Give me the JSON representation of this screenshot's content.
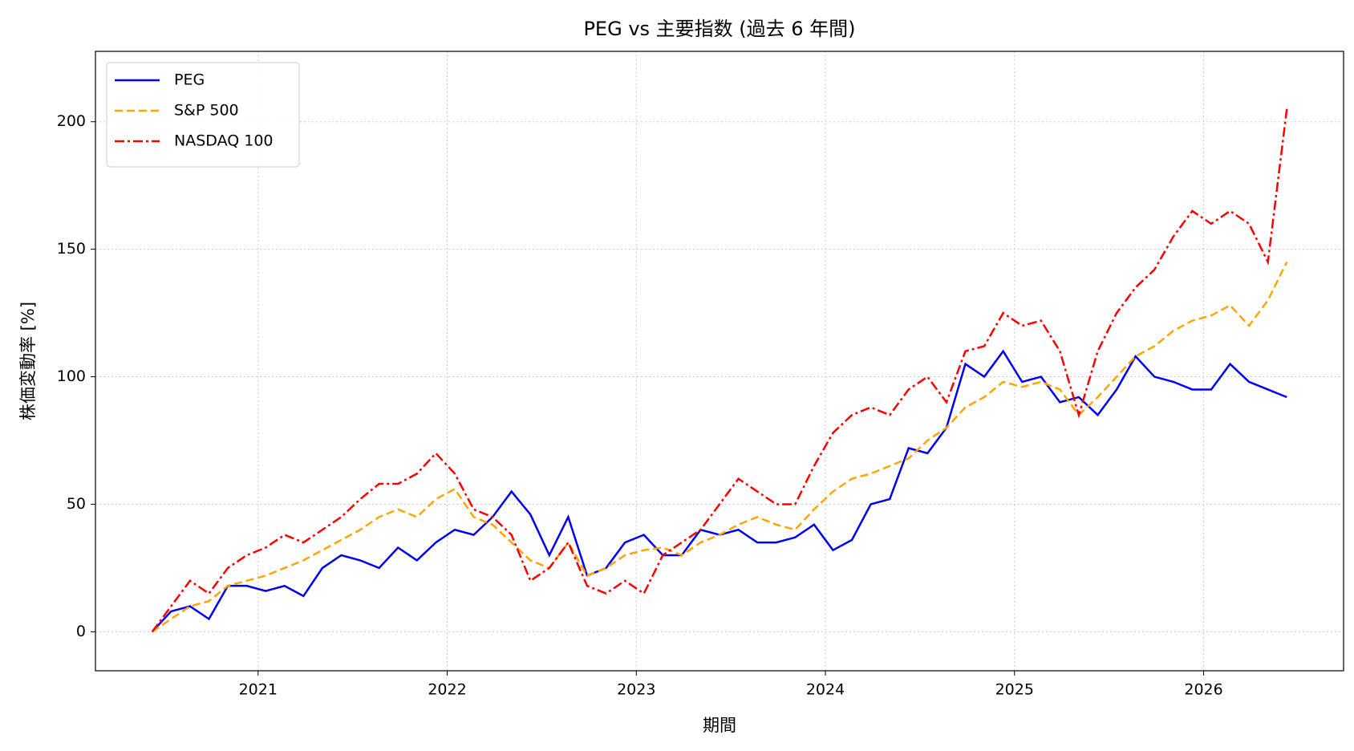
{
  "chart_data": {
    "type": "line",
    "title": "PEG vs 主要指数 (過去 6 年間)",
    "xlabel": "期間",
    "ylabel": "株価変動率 [%]",
    "x": [
      2020.44,
      2020.54,
      2020.64,
      2020.74,
      2020.84,
      2020.94,
      2021.04,
      2021.14,
      2021.24,
      2021.34,
      2021.44,
      2021.54,
      2021.64,
      2021.74,
      2021.84,
      2021.94,
      2022.04,
      2022.14,
      2022.24,
      2022.34,
      2022.44,
      2022.54,
      2022.64,
      2022.74,
      2022.84,
      2022.94,
      2023.04,
      2023.14,
      2023.24,
      2023.34,
      2023.44,
      2023.54,
      2023.64,
      2023.74,
      2023.84,
      2023.94,
      2024.04,
      2024.14,
      2024.24,
      2024.34,
      2024.44,
      2024.54,
      2024.64,
      2024.74,
      2024.84,
      2024.94,
      2025.04,
      2025.14,
      2025.24,
      2025.34,
      2025.44,
      2025.54,
      2025.64,
      2025.74,
      2025.84,
      2025.94,
      2026.04,
      2026.14,
      2026.24,
      2026.34,
      2026.44
    ],
    "series": [
      {
        "name": "PEG",
        "color": "#0000ff",
        "linestyle": "solid",
        "values": [
          0,
          8,
          10,
          5,
          18,
          18,
          16,
          18,
          14,
          25,
          30,
          28,
          25,
          33,
          28,
          35,
          40,
          38,
          45,
          55,
          46,
          30,
          45,
          22,
          25,
          35,
          38,
          30,
          30,
          40,
          38,
          40,
          35,
          35,
          37,
          42,
          32,
          36,
          50,
          52,
          72,
          70,
          80,
          105,
          100,
          110,
          98,
          100,
          90,
          92,
          85,
          95,
          108,
          100,
          98,
          95,
          95,
          105,
          98,
          95,
          92
        ]
      },
      {
        "name": "S&P 500",
        "color": "#ffa500",
        "linestyle": "dashed",
        "values": [
          0,
          5,
          10,
          12,
          18,
          20,
          22,
          25,
          28,
          32,
          36,
          40,
          45,
          48,
          45,
          52,
          56,
          45,
          42,
          35,
          28,
          25,
          35,
          22,
          25,
          30,
          32,
          33,
          30,
          35,
          38,
          42,
          45,
          42,
          40,
          48,
          55,
          60,
          62,
          65,
          68,
          75,
          80,
          88,
          92,
          98,
          96,
          98,
          95,
          85,
          92,
          100,
          108,
          112,
          118,
          122,
          124,
          128,
          120,
          130,
          145
        ]
      },
      {
        "name": "NASDAQ 100",
        "color": "#ff0000",
        "linestyle": "dashdot",
        "values": [
          0,
          10,
          20,
          15,
          25,
          30,
          33,
          38,
          35,
          40,
          45,
          52,
          58,
          58,
          62,
          70,
          62,
          48,
          45,
          38,
          20,
          25,
          35,
          18,
          15,
          20,
          15,
          30,
          35,
          40,
          50,
          60,
          55,
          50,
          50,
          65,
          78,
          85,
          88,
          85,
          95,
          100,
          90,
          110,
          112,
          125,
          120,
          122,
          110,
          85,
          110,
          125,
          135,
          142,
          155,
          165,
          160,
          165,
          160,
          145,
          205
        ]
      }
    ],
    "xlim": [
      2020.14,
      2026.74
    ],
    "xticks": [
      2021,
      2022,
      2023,
      2024,
      2025,
      2026
    ],
    "ylim": [
      -15.3,
      227.6
    ],
    "yticks": [
      0,
      50,
      100,
      150,
      200
    ],
    "grid": true,
    "legend": "upper left"
  }
}
